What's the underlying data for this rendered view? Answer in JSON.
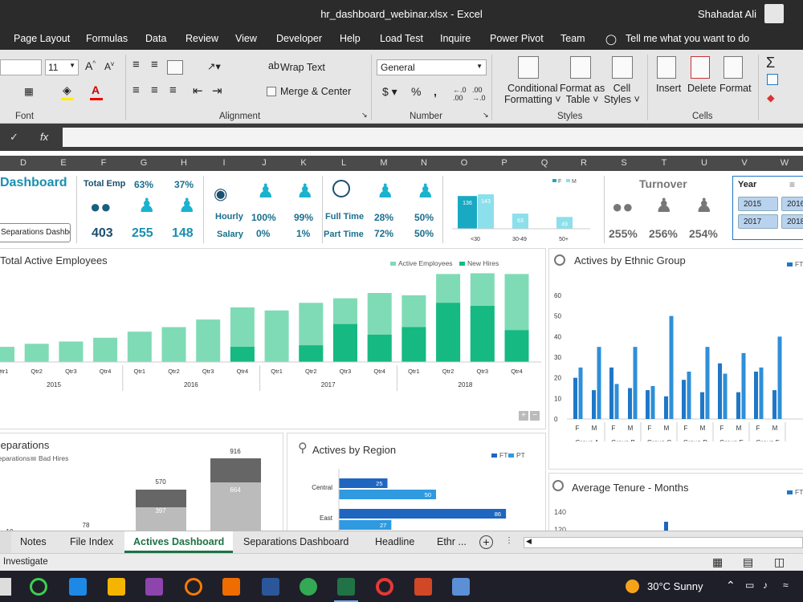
{
  "window": {
    "title": "hr_dashboard_webinar.xlsx  -  Excel",
    "user": "Shahadat Ali"
  },
  "menu": [
    "Page Layout",
    "Formulas",
    "Data",
    "Review",
    "View",
    "Developer",
    "Help",
    "Load Test",
    "Inquire",
    "Power Pivot",
    "Team",
    "Tell me what you want to do"
  ],
  "ribbon": {
    "font_size": "11",
    "number_format": "General",
    "wrap_text": "Wrap Text",
    "merge_center": "Merge & Center",
    "conditional": [
      "Conditional",
      "Formatting"
    ],
    "format_table": [
      "Format as",
      "Table"
    ],
    "cell_styles": [
      "Cell",
      "Styles"
    ],
    "insert": "Insert",
    "delete": "Delete",
    "format": "Format",
    "groups": {
      "font": "Font",
      "alignment": "Alignment",
      "number": "Number",
      "styles": "Styles",
      "cells": "Cells"
    }
  },
  "formula_bar": {
    "fx": "fx"
  },
  "columns": [
    "D",
    "E",
    "F",
    "G",
    "H",
    "I",
    "J",
    "K",
    "L",
    "M",
    "N",
    "O",
    "P",
    "Q",
    "R",
    "S",
    "T",
    "U",
    "V",
    "W"
  ],
  "kpi": {
    "title": "Dashboard",
    "total_emp_label": "Total Emp",
    "total_emp": "403",
    "male_pct": "63%",
    "female_pct": "37%",
    "male_count": "255",
    "female_count": "148",
    "hourly_label": "Hourly",
    "salary_label": "Salary",
    "hourly_male": "100%",
    "hourly_female": "99%",
    "salary_male": "0%",
    "salary_female": "1%",
    "fulltime_label": "Full Time",
    "parttime_label": "Part Time",
    "ft_male": "28%",
    "ft_female": "50%",
    "pt_male": "72%",
    "pt_female": "50%",
    "separations_button": "Separations Dashboard",
    "turnover_label": "Turnover",
    "turnover_total": "255%",
    "turnover_male": "256%",
    "turnover_female": "254%",
    "year_label": "Year",
    "years": [
      "2015",
      "2016",
      "2017",
      "2018"
    ]
  },
  "chart_data": [
    {
      "type": "bar",
      "title": "",
      "legend": [
        "F",
        "M"
      ],
      "categories": [
        "<30",
        "30-49",
        "50+"
      ],
      "series": [
        {
          "name": "F",
          "values": [
            136,
            null,
            null
          ]
        },
        {
          "name": "M",
          "values": [
            143,
            63,
            49
          ]
        }
      ]
    },
    {
      "type": "bar",
      "title": "Total Active Employees",
      "legend_position": "top-right",
      "categories": [
        "Qtr1",
        "Qtr2",
        "Qtr3",
        "Qtr4",
        "Qtr1",
        "Qtr2",
        "Qtr3",
        "Qtr4",
        "Qtr1",
        "Qtr2",
        "Qtr3",
        "Qtr4",
        "Qtr1",
        "Qtr2",
        "Qtr3",
        "Qtr4"
      ],
      "groups": [
        "2015",
        "2016",
        "2017",
        "2018"
      ],
      "series": [
        {
          "name": "Active Employees",
          "values": [
            20,
            24,
            27,
            32,
            40,
            46,
            56,
            72,
            68,
            78,
            84,
            91,
            88,
            116,
            117,
            116
          ]
        },
        {
          "name": "New Hires",
          "values": [
            0,
            0,
            0,
            0,
            0,
            0,
            0,
            20,
            0,
            22,
            50,
            36,
            46,
            78,
            74,
            42
          ]
        }
      ]
    },
    {
      "type": "bar",
      "title": "Actives by Ethnic Group",
      "legend": [
        "FT"
      ],
      "ylim": [
        0,
        60
      ],
      "yticks": [
        "0",
        "10",
        "20",
        "30",
        "40",
        "50",
        "60"
      ],
      "groups": [
        "Group A",
        "Group B",
        "Group C",
        "Group D",
        "Group E",
        "Group F"
      ],
      "sub": [
        "F",
        "M"
      ],
      "values": [
        20,
        25,
        14,
        35,
        25,
        17,
        15,
        35,
        14,
        16,
        11,
        50,
        19,
        23,
        13,
        35,
        27,
        22,
        13,
        32,
        23,
        25,
        14,
        40
      ]
    },
    {
      "type": "bar",
      "title": "Separations",
      "legend": [
        "Separations",
        "Bad Hires"
      ],
      "labels": [
        "10",
        "78",
        "570",
        "397",
        "916",
        "664"
      ]
    },
    {
      "type": "bar",
      "title": "Actives by Region",
      "legend": [
        "FT",
        "PT"
      ],
      "categories": [
        "Central",
        "East"
      ],
      "series": [
        {
          "name": "FT",
          "values": [
            25,
            86
          ]
        },
        {
          "name": "PT",
          "values": [
            50,
            27
          ]
        }
      ]
    },
    {
      "type": "bar",
      "title": "Average Tenure - Months",
      "legend": [
        "FT"
      ],
      "yticks": [
        "140",
        "120"
      ]
    }
  ],
  "sheet_tabs": [
    "Notes",
    "File Index",
    "Actives Dashboard",
    "Separations Dashboard",
    "Headline",
    "Ethr ..."
  ],
  "status": {
    "mode": "Investigate"
  },
  "taskbar": {
    "weather": "30°C  Sunny"
  },
  "colors": {
    "teal": "#19a9c3",
    "green_light": "#7fdbb6",
    "green_dark": "#16b981",
    "blue": "#1f77c8",
    "blue_light": "#2f8fd8"
  }
}
